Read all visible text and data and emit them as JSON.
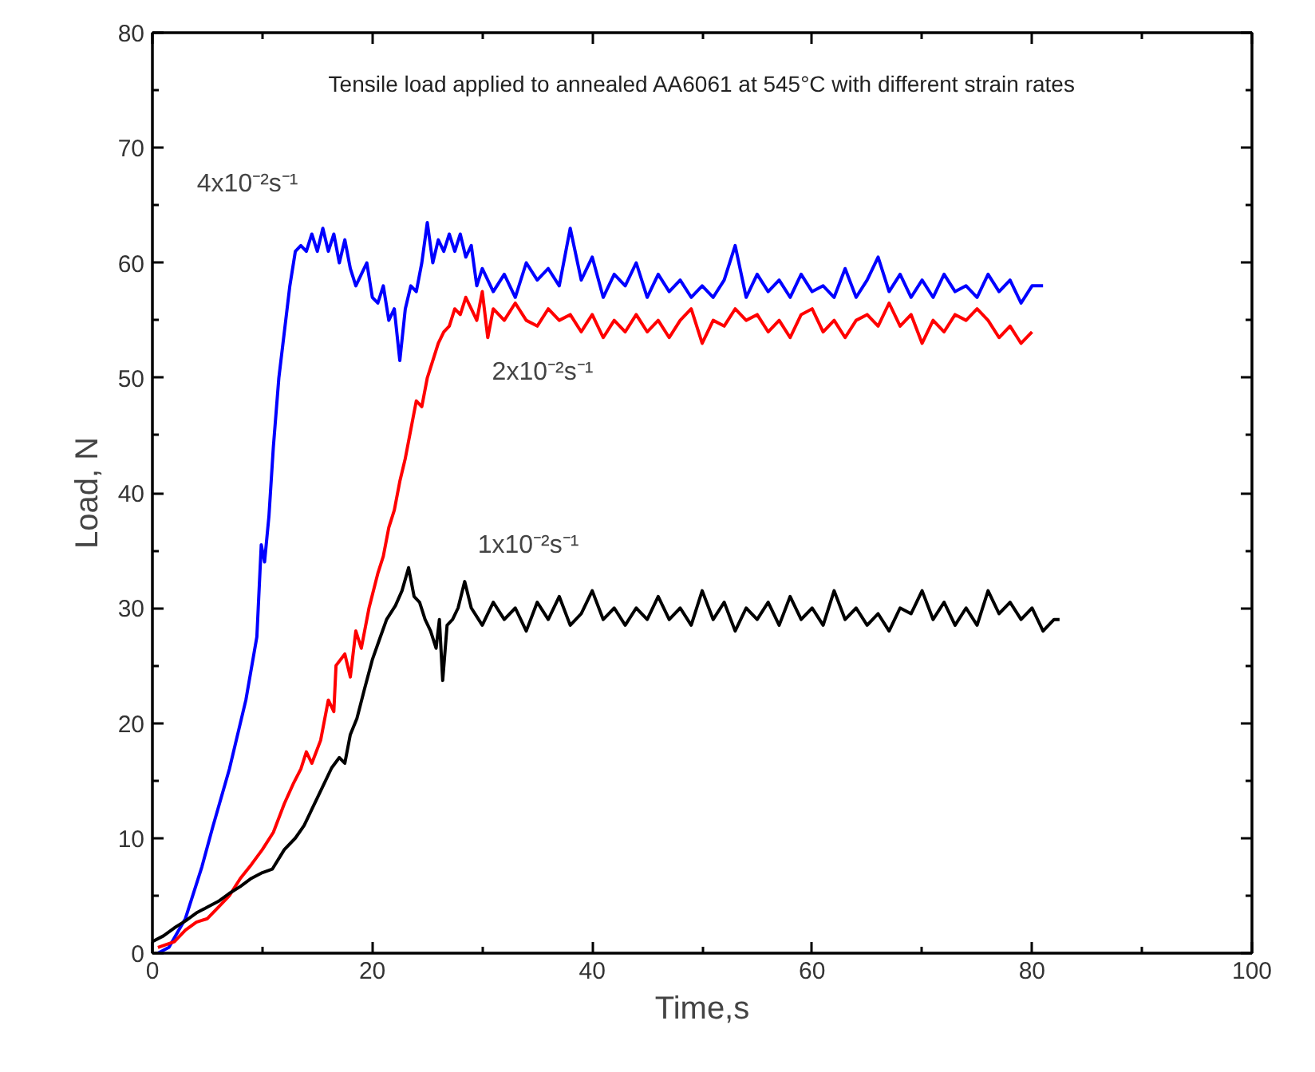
{
  "chart_data": {
    "type": "line",
    "title": "Tensile load applied to annealed AA6061 at 545°C with different strain rates",
    "xlabel": "Time,s",
    "ylabel": "Load, N",
    "xlim": [
      0,
      100
    ],
    "ylim": [
      0,
      80
    ],
    "xticks": [
      0,
      {
        "value": 10,
        "label": null
      },
      20,
      {
        "value": 30,
        "label": null
      },
      40,
      {
        "value": 50,
        "label": null
      },
      60,
      {
        "value": 70,
        "label": null
      },
      80,
      {
        "value": 90,
        "label": null
      },
      100
    ],
    "yticks": [
      0,
      {
        "value": 5,
        "label": null
      },
      10,
      {
        "value": 15,
        "label": null
      },
      20,
      {
        "value": 25,
        "label": null
      },
      30,
      {
        "value": 35,
        "label": null
      },
      40,
      {
        "value": 45,
        "label": null
      },
      50,
      {
        "value": 55,
        "label": null
      },
      60,
      {
        "value": 65,
        "label": null
      },
      70,
      {
        "value": 75,
        "label": null
      },
      80
    ],
    "grid": false,
    "marker": "none",
    "line_style": "solid",
    "series": [
      {
        "name": "4x10⁻²s⁻¹",
        "color": "#0000ff",
        "x": [
          0.5,
          1.5,
          3,
          4.5,
          5.5,
          7,
          8.5,
          9.5,
          9.9,
          10.2,
          10.6,
          11,
          11.5,
          12,
          12.5,
          13,
          13.5,
          14,
          14.5,
          15,
          15.5,
          16,
          16.5,
          17,
          17.5,
          18,
          18.5,
          19,
          19.5,
          20,
          20.5,
          21,
          21.5,
          22,
          22.5,
          23,
          23.5,
          24,
          24.5,
          25,
          25.5,
          26,
          26.5,
          27,
          27.5,
          28,
          28.5,
          29,
          29.5,
          30,
          31,
          32,
          33,
          34,
          35,
          36,
          37,
          38,
          39,
          40,
          41,
          42,
          43,
          44,
          45,
          46,
          47,
          48,
          49,
          50,
          51,
          52,
          53,
          54,
          55,
          56,
          57,
          58,
          59,
          60,
          61,
          62,
          63,
          64,
          65,
          66,
          67,
          68,
          69,
          70,
          71,
          72,
          73,
          74,
          75,
          76,
          77,
          78,
          79,
          80,
          81
        ],
        "values": [
          0,
          0.5,
          3,
          7.5,
          11,
          16,
          22,
          27.5,
          35.5,
          34,
          38,
          44,
          50,
          54,
          58,
          61,
          61.5,
          61,
          62.5,
          61,
          63,
          61,
          62.5,
          60,
          62,
          59.5,
          58,
          59,
          60,
          57,
          56.5,
          58,
          55,
          56,
          51.5,
          56,
          58,
          57.5,
          60,
          63.5,
          60,
          62,
          61,
          62.5,
          61,
          62.5,
          60.5,
          61.5,
          58,
          59.5,
          57.5,
          59,
          57,
          60,
          58.5,
          59.5,
          58,
          63,
          58.5,
          60.5,
          57,
          59,
          58,
          60,
          57,
          59,
          57.5,
          58.5,
          57,
          58,
          57,
          58.5,
          61.5,
          57,
          59,
          57.5,
          58.5,
          57,
          59,
          57.5,
          58,
          57,
          59.5,
          57,
          58.5,
          60.5,
          57.5,
          59,
          57,
          58.5,
          57,
          59,
          57.5,
          58,
          57,
          59,
          57.5,
          58.5,
          56.5,
          58,
          58
        ]
      },
      {
        "name": "2x10⁻²s⁻¹",
        "color": "#ff0000",
        "x": [
          0.5,
          2,
          3,
          4,
          5,
          6,
          7,
          8,
          9,
          10,
          11,
          12,
          12.8,
          13.5,
          14,
          14.5,
          15.3,
          16,
          16.5,
          16.7,
          17.5,
          18,
          18.5,
          19,
          19.7,
          20.5,
          21,
          21.5,
          22,
          22.5,
          23,
          23.6,
          24,
          24.5,
          25,
          25.5,
          26,
          26.5,
          27,
          27.5,
          28,
          28.5,
          29,
          29.5,
          30,
          30.5,
          31,
          32,
          33,
          34,
          35,
          36,
          37,
          38,
          39,
          40,
          41,
          42,
          43,
          44,
          45,
          46,
          47,
          48,
          49,
          50,
          51,
          52,
          53,
          54,
          55,
          56,
          57,
          58,
          59,
          60,
          61,
          62,
          63,
          64,
          65,
          66,
          67,
          68,
          69,
          70,
          71,
          72,
          73,
          74,
          75,
          76,
          77,
          78,
          79,
          80
        ],
        "values": [
          0.5,
          1,
          2,
          2.7,
          3,
          4,
          5,
          6.5,
          7.7,
          9,
          10.5,
          13,
          14.7,
          16,
          17.5,
          16.5,
          18.5,
          22,
          21,
          25,
          26,
          24,
          28,
          26.5,
          30,
          33,
          34.5,
          37,
          38.5,
          41,
          43,
          46,
          48,
          47.5,
          50,
          51.5,
          53,
          54,
          54.5,
          56,
          55.5,
          57,
          56,
          55,
          57.5,
          53.5,
          56,
          55,
          56.5,
          55,
          54.5,
          56,
          55,
          55.5,
          54,
          55.5,
          53.5,
          55,
          54,
          55.5,
          54,
          55,
          53.5,
          55,
          56,
          53,
          55,
          54.5,
          56,
          55,
          55.5,
          54,
          55,
          53.5,
          55.5,
          56,
          54,
          55,
          53.5,
          55,
          55.5,
          54.5,
          56.5,
          54.5,
          55.5,
          53,
          55,
          54,
          55.5,
          55,
          56,
          55,
          53.5,
          54.5,
          53,
          54
        ]
      },
      {
        "name": "1x10⁻²s⁻¹",
        "color": "#000000",
        "x": [
          0,
          1,
          2,
          3,
          4,
          5,
          6,
          7,
          8,
          9,
          10,
          10.9,
          12,
          13,
          13.8,
          14.5,
          15.5,
          16.3,
          17,
          17.5,
          18,
          18.6,
          19.3,
          20,
          20.7,
          21.3,
          22.1,
          22.7,
          23.3,
          23.8,
          24.3,
          24.8,
          25.3,
          25.8,
          26.1,
          26.4,
          26.8,
          27.3,
          27.8,
          28.4,
          29,
          30,
          31,
          32,
          33,
          34,
          35,
          36,
          37,
          38,
          39,
          40,
          41,
          42,
          43,
          44,
          45,
          46,
          47,
          48,
          49,
          50,
          51,
          52,
          53,
          54,
          55,
          56,
          57,
          58,
          59,
          60,
          61,
          62,
          63,
          64,
          65,
          66,
          67,
          68,
          69,
          70,
          71,
          72,
          73,
          74,
          75,
          76,
          77,
          78,
          79,
          80,
          81,
          82,
          82.5
        ],
        "values": [
          1,
          1.5,
          2.2,
          2.8,
          3.5,
          4,
          4.5,
          5.2,
          5.8,
          6.5,
          7,
          7.3,
          9,
          10,
          11.1,
          12.5,
          14.5,
          16.1,
          17,
          16.5,
          19,
          20.4,
          23,
          25.5,
          27.4,
          29,
          30.2,
          31.5,
          33.5,
          31,
          30.5,
          29,
          28,
          26.5,
          29,
          23.7,
          28.5,
          29,
          30,
          32.3,
          30,
          28.5,
          30.5,
          29,
          30,
          28,
          30.5,
          29,
          31,
          28.5,
          29.5,
          31.5,
          29,
          30,
          28.5,
          30,
          29,
          31,
          29,
          30,
          28.5,
          31.5,
          29,
          30.5,
          28,
          30,
          29,
          30.5,
          28.5,
          31,
          29,
          30,
          28.5,
          31.5,
          29,
          30,
          28.5,
          29.5,
          28,
          30,
          29.5,
          31.5,
          29,
          30.5,
          28.5,
          30,
          28.5,
          31.5,
          29.5,
          30.5,
          29,
          30,
          28,
          29,
          29
        ]
      }
    ]
  }
}
